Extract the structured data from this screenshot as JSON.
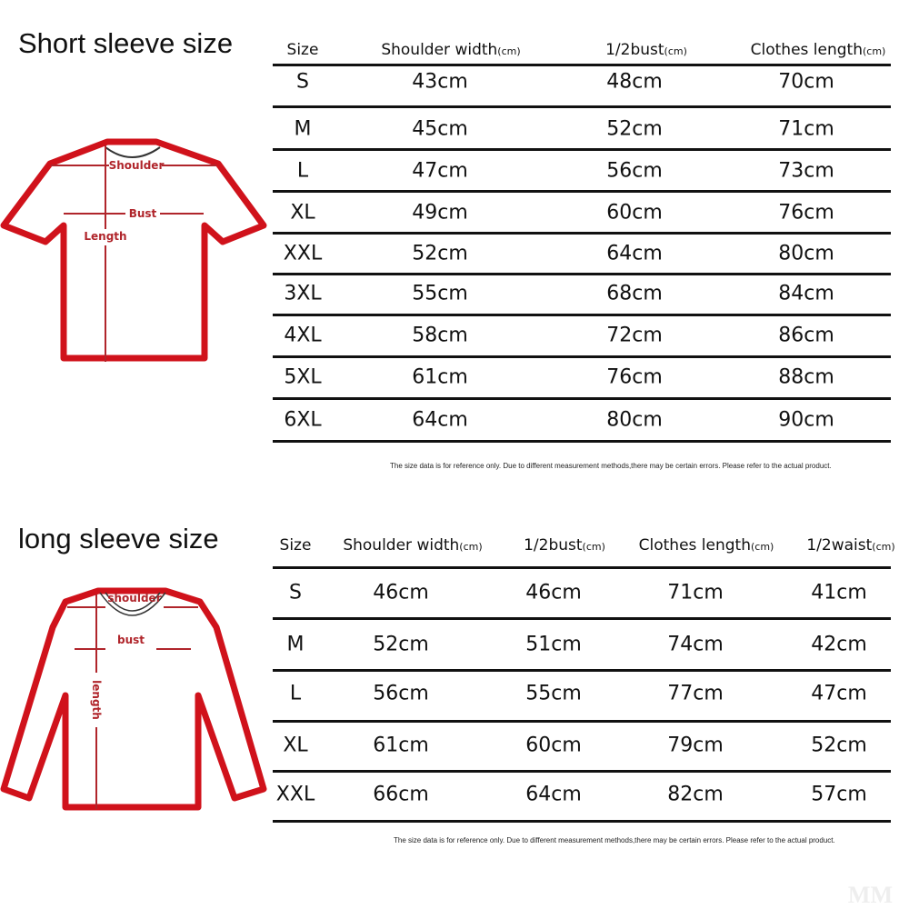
{
  "short_sleeve": {
    "title": "Short sleeve size",
    "diagram_labels": {
      "shoulder": "Shoulder",
      "bust": "Bust",
      "length": "Length"
    },
    "headers": [
      {
        "label": "Size",
        "unit": ""
      },
      {
        "label": "Shoulder width",
        "unit": "(cm)"
      },
      {
        "label": "1/2bust",
        "unit": "(cm)"
      },
      {
        "label": "Clothes length",
        "unit": "(cm)"
      }
    ],
    "rows": [
      [
        "S",
        "43cm",
        "48cm",
        "70cm"
      ],
      [
        "M",
        "45cm",
        "52cm",
        "71cm"
      ],
      [
        "L",
        "47cm",
        "56cm",
        "73cm"
      ],
      [
        "XL",
        "49cm",
        "60cm",
        "76cm"
      ],
      [
        "XXL",
        "52cm",
        "64cm",
        "80cm"
      ],
      [
        "3XL",
        "55cm",
        "68cm",
        "84cm"
      ],
      [
        "4XL",
        "58cm",
        "72cm",
        "86cm"
      ],
      [
        "5XL",
        "61cm",
        "76cm",
        "88cm"
      ],
      [
        "6XL",
        "64cm",
        "80cm",
        "90cm"
      ]
    ],
    "note": "The size data is for reference only. Due to different measurement methods,there may be certain errors. Please refer to the actual product."
  },
  "long_sleeve": {
    "title": "long sleeve size",
    "diagram_labels": {
      "shoulder": "shoulder",
      "bust": "bust",
      "length": "length"
    },
    "headers": [
      {
        "label": "Size",
        "unit": ""
      },
      {
        "label": "Shoulder width",
        "unit": "(cm)"
      },
      {
        "label": "1/2bust",
        "unit": "(cm)"
      },
      {
        "label": "Clothes length",
        "unit": "(cm)"
      },
      {
        "label": "1/2waist",
        "unit": "(cm)"
      }
    ],
    "rows": [
      [
        "S",
        "46cm",
        "46cm",
        "71cm",
        "41cm"
      ],
      [
        "M",
        "52cm",
        "51cm",
        "74cm",
        "42cm"
      ],
      [
        "L",
        "56cm",
        "55cm",
        "77cm",
        "47cm"
      ],
      [
        "XL",
        "61cm",
        "60cm",
        "79cm",
        "52cm"
      ],
      [
        "XXL",
        "66cm",
        "64cm",
        "82cm",
        "57cm"
      ]
    ],
    "note": "The size data is for reference only. Due to different measurement methods,there may be certain errors. Please refer to the actual product."
  },
  "watermark": "MM",
  "colors": {
    "outline": "#d0121b",
    "label": "#b0252b",
    "rule": "#111111"
  }
}
